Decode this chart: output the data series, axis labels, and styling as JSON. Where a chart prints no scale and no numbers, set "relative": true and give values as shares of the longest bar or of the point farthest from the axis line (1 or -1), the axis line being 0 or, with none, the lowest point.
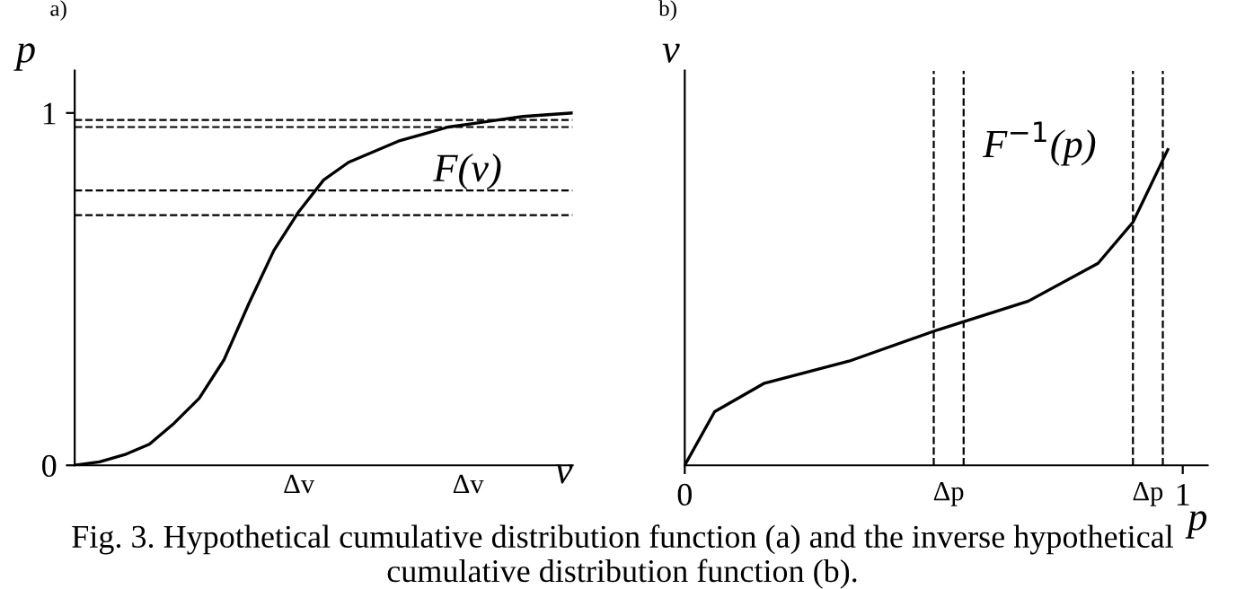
{
  "chart_data": [
    {
      "type": "line",
      "title": "a)",
      "xlabel": "v",
      "ylabel": "p",
      "categories": [
        null,
        null,
        null,
        null,
        null,
        null,
        null,
        null,
        null,
        null,
        null,
        null,
        null,
        null,
        null,
        null,
        null,
        null,
        null,
        null,
        null
      ],
      "series": [
        {
          "color": "#000000",
          "values": [
            0,
            0.01,
            0.03,
            0.06,
            0.12,
            0.19,
            0.3,
            0.46,
            0.61,
            0.72,
            0.81,
            0.86,
            0.89,
            0.92,
            0.94,
            0.96,
            0.97,
            0.98,
            0.99,
            0.995,
            1.0
          ]
        }
      ],
      "ylim": [
        0,
        1.12
      ],
      "yticks": [
        0,
        1
      ],
      "tick_labels": "y",
      "grid": false,
      "marker": "none",
      "line_style": "solid",
      "ref_lines": [
        {
          "axis": "y",
          "value": 0.78,
          "color": "#000000",
          "line_style": "dashed"
        },
        {
          "axis": "y",
          "value": 0.71,
          "color": "#000000",
          "line_style": "dashed"
        },
        {
          "axis": "y",
          "value": 0.98,
          "color": "#000000",
          "line_style": "dashed"
        },
        {
          "axis": "y",
          "value": 0.96,
          "color": "#000000",
          "line_style": "dashed"
        }
      ],
      "annotations": [
        "F(v)",
        "Δv",
        "Δv"
      ]
    },
    {
      "type": "line",
      "title": "b)",
      "xlabel": "p",
      "ylabel": "v",
      "relative": true,
      "series": [
        {
          "color": "#000000",
          "x": [
            0,
            0.06,
            0.16,
            0.33,
            0.51,
            0.69,
            0.83,
            0.9,
            0.97
          ],
          "values": [
            0,
            0.17,
            0.26,
            0.33,
            0.43,
            0.52,
            0.64,
            0.77,
            1.0
          ]
        }
      ],
      "xlim": [
        0,
        1.05
      ],
      "xticks": [
        0,
        1
      ],
      "tick_labels": "x",
      "grid": false,
      "marker": "none",
      "line_style": "solid",
      "ref_lines": [
        {
          "axis": "x",
          "value": 0.5,
          "color": "#000000",
          "line_style": "dashed"
        },
        {
          "axis": "x",
          "value": 0.56,
          "color": "#000000",
          "line_style": "dashed"
        },
        {
          "axis": "x",
          "value": 0.9,
          "color": "#000000",
          "line_style": "dashed"
        },
        {
          "axis": "x",
          "value": 0.96,
          "color": "#000000",
          "line_style": "dashed"
        }
      ],
      "annotations": [
        "F$^{−1}$(p)",
        "Δp",
        "Δp",
        "Fig. 3. Hypothetical cumulative distribution function (a) and the inverse hypothetical cumulative distribution function (b)."
      ]
    }
  ]
}
